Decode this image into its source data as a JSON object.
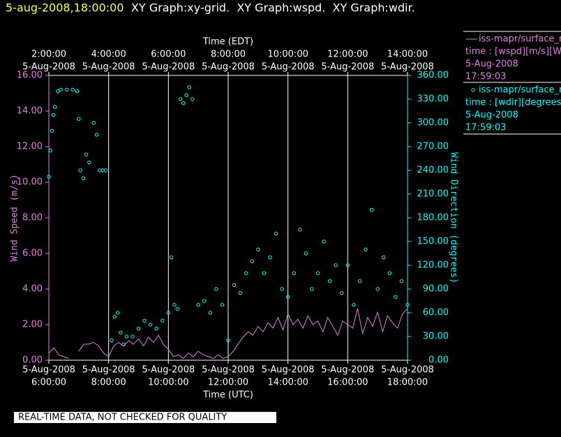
{
  "header": {
    "stamp": "5-aug-2008,18:00:00",
    "text": "XY Graph:xy-grid.  XY Graph:wspd.  XY Graph:wdir."
  },
  "note": "REAL-TIME DATA, NOT CHECKED FOR QUALITY",
  "legend": [
    {
      "lines": [
        "iss-mapr/surface_m",
        "time : [wspd][m/s][Wind",
        "5-Aug-2008",
        "17:59:03"
      ]
    },
    {
      "lines": [
        "iss-mapr/surface_m",
        "time : [wdir][degrees][V",
        "5-Aug-2008",
        "17:59:03"
      ]
    }
  ],
  "chart_data": {
    "type": "line",
    "xlabel": "Time (UTC)",
    "x2label": "Time (EDT)",
    "ylabel": "Wind Speed (m/s)",
    "y2label": "Wind Direction (degrees)",
    "xlim": [
      6,
      18
    ],
    "xticks": [
      {
        "value": 6,
        "label": "6:00:00",
        "date": "5-Aug-2008"
      },
      {
        "value": 8,
        "label": "8:00:00",
        "date": "5-Aug-2008"
      },
      {
        "value": 10,
        "label": "10:00:00",
        "date": "5-Aug-2008"
      },
      {
        "value": 12,
        "label": "12:00:00",
        "date": "5-Aug-2008"
      },
      {
        "value": 14,
        "label": "14:00:00",
        "date": "5-Aug-2008"
      },
      {
        "value": 16,
        "label": "16:00:00",
        "date": "5-Aug-2008"
      },
      {
        "value": 18,
        "label": "18:00:00",
        "date": "5-Aug-2008"
      }
    ],
    "x2ticks": [
      {
        "value": 6,
        "label": "2:00:00",
        "date": "5-Aug-2008"
      },
      {
        "value": 8,
        "label": "4:00:00",
        "date": "5-Aug-2008"
      },
      {
        "value": 10,
        "label": "6:00:00",
        "date": "5-Aug-2008"
      },
      {
        "value": 12,
        "label": "8:00:00",
        "date": "5-Aug-2008"
      },
      {
        "value": 14,
        "label": "10:00:00",
        "date": "5-Aug-2008"
      },
      {
        "value": 16,
        "label": "12:00:00",
        "date": "5-Aug-2008"
      },
      {
        "value": 18,
        "label": "14:00:00",
        "date": "5-Aug-2008"
      }
    ],
    "ylim": [
      0,
      16
    ],
    "yticks": [
      {
        "value": 0,
        "label": "0.00"
      },
      {
        "value": 2,
        "label": "2.00"
      },
      {
        "value": 4,
        "label": "4.00"
      },
      {
        "value": 6,
        "label": "6.00"
      },
      {
        "value": 8,
        "label": "8.00"
      },
      {
        "value": 10,
        "label": "10.00"
      },
      {
        "value": 12,
        "label": "12.00"
      },
      {
        "value": 14,
        "label": "14.00"
      },
      {
        "value": 16,
        "label": "16.00"
      }
    ],
    "y2lim": [
      0,
      360
    ],
    "y2ticks": [
      {
        "value": 0,
        "label": "0.00"
      },
      {
        "value": 30,
        "label": "30.00"
      },
      {
        "value": 60,
        "label": "60.00"
      },
      {
        "value": 90,
        "label": "90.00"
      },
      {
        "value": 120,
        "label": "120.00"
      },
      {
        "value": 150,
        "label": "150.00"
      },
      {
        "value": 180,
        "label": "180.00"
      },
      {
        "value": 210,
        "label": "210.00"
      },
      {
        "value": 240,
        "label": "240.00"
      },
      {
        "value": 270,
        "label": "270.00"
      },
      {
        "value": 300,
        "label": "300.00"
      },
      {
        "value": 330,
        "label": "330.00"
      },
      {
        "value": 360,
        "label": "360.00"
      }
    ],
    "grid": true,
    "series": [
      {
        "name": "wspd",
        "type": "line",
        "color": "#e080e0",
        "x": [
          6,
          6.17,
          6.33,
          6.5,
          6.67,
          6.83,
          7,
          7.17,
          7.33,
          7.5,
          7.67,
          7.83,
          8,
          8.17,
          8.33,
          8.5,
          8.67,
          8.83,
          9,
          9.17,
          9.33,
          9.5,
          9.67,
          9.83,
          10,
          10.17,
          10.33,
          10.5,
          10.67,
          10.83,
          11,
          11.17,
          11.33,
          11.5,
          11.67,
          11.83,
          12,
          12.17,
          12.33,
          12.5,
          12.67,
          12.83,
          13,
          13.17,
          13.33,
          13.5,
          13.67,
          13.83,
          14,
          14.17,
          14.33,
          14.5,
          14.67,
          14.83,
          15,
          15.17,
          15.33,
          15.5,
          15.67,
          15.83,
          16,
          16.17,
          16.33,
          16.5,
          16.67,
          16.83,
          17,
          17.17,
          17.33,
          17.5,
          17.67,
          17.83,
          18
        ],
        "values": [
          0.4,
          0.7,
          0.3,
          0.2,
          0.1,
          null,
          0.5,
          0.9,
          0.9,
          1.0,
          0.8,
          0.4,
          0.2,
          0.8,
          1.0,
          0.8,
          1.1,
          0.9,
          1.2,
          0.8,
          1.3,
          1.0,
          1.4,
          0.9,
          0.6,
          0.2,
          0.3,
          0.1,
          0.4,
          0.2,
          0.5,
          0.3,
          0.2,
          0.1,
          0.3,
          0.1,
          0.2,
          0.5,
          0.9,
          1.3,
          1.6,
          1.4,
          1.9,
          1.6,
          2.1,
          1.8,
          2.4,
          1.7,
          2.6,
          2.0,
          2.3,
          1.8,
          2.5,
          2.0,
          2.2,
          1.6,
          2.4,
          1.9,
          1.4,
          2.2,
          2.0,
          1.8,
          2.9,
          1.5,
          2.4,
          1.9,
          2.7,
          1.6,
          2.5,
          2.1,
          1.8,
          2.6,
          2.9
        ]
      },
      {
        "name": "wdir",
        "type": "scatter",
        "axis": "y2",
        "color": "#00ffff",
        "x": [
          6,
          6.05,
          6.1,
          6.15,
          6.2,
          6.3,
          6.4,
          6.6,
          6.8,
          6.95,
          7,
          7.05,
          7.15,
          7.25,
          7.35,
          7.5,
          7.6,
          7.7,
          7.8,
          7.9,
          8.1,
          8.2,
          8.3,
          8.4,
          8.5,
          8.6,
          8.8,
          9,
          9.2,
          9.4,
          9.6,
          9.8,
          10,
          10.1,
          10.2,
          10.3,
          10.4,
          10.5,
          10.6,
          10.7,
          10.8,
          11,
          11.2,
          11.4,
          11.6,
          11.8,
          12,
          12.2,
          12.4,
          12.6,
          12.8,
          13,
          13.2,
          13.4,
          13.6,
          13.8,
          14,
          14.2,
          14.4,
          14.6,
          14.8,
          15,
          15.2,
          15.4,
          15.6,
          15.8,
          16,
          16.2,
          16.4,
          16.6,
          16.8,
          17,
          17.2,
          17.4,
          17.6,
          17.8,
          18
        ],
        "values": [
          232,
          265,
          290,
          310,
          320,
          340,
          342,
          342,
          342,
          340,
          305,
          240,
          230,
          260,
          250,
          300,
          285,
          240,
          240,
          240,
          25,
          55,
          60,
          35,
          20,
          30,
          30,
          40,
          50,
          45,
          40,
          50,
          60,
          130,
          70,
          65,
          330,
          325,
          335,
          345,
          330,
          70,
          75,
          60,
          90,
          70,
          25,
          95,
          85,
          110,
          125,
          140,
          110,
          130,
          160,
          90,
          80,
          110,
          165,
          135,
          90,
          110,
          150,
          100,
          120,
          85,
          120,
          70,
          100,
          140,
          190,
          90,
          130,
          110,
          80,
          100,
          70
        ]
      }
    ]
  }
}
